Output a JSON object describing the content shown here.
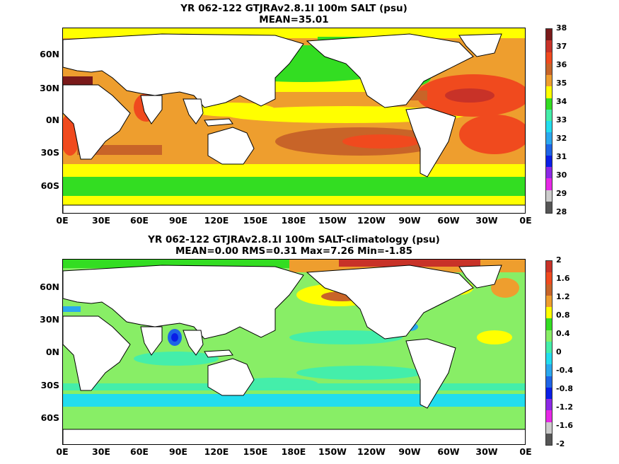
{
  "top": {
    "title": "YR 062-122 GTJRAv2.8.1l 100m SALT (psu)",
    "subtitle": "MEAN=35.01",
    "colorbar": {
      "labels": [
        "38",
        "37",
        "36",
        "35",
        "34",
        "33",
        "32",
        "31",
        "30",
        "29",
        "28"
      ],
      "colors": [
        "#7a1a1a",
        "#c83228",
        "#f04a1e",
        "#c86428",
        "#ee9e2e",
        "#ffff00",
        "#33dd22",
        "#44eeaa",
        "#22ddee",
        "#2aa8ee",
        "#1e64e6",
        "#0a1ee6",
        "#8c28e6",
        "#e628e6",
        "#cccccc",
        "#555555"
      ]
    }
  },
  "bottom": {
    "title": "YR 062-122 GTJRAv2.8.1l 100m SALT-climatology (psu)",
    "subtitle": "MEAN=0.00   RMS=0.31   Max=7.26   Min=-1.85",
    "colorbar": {
      "labels": [
        "2",
        "1.6",
        "1.2",
        "0.8",
        "0.4",
        "0",
        "-0.4",
        "-0.8",
        "-1.2",
        "-1.6",
        "-2"
      ],
      "colors": [
        "#c83228",
        "#f04a1e",
        "#c86428",
        "#ee9e2e",
        "#ffff00",
        "#33dd22",
        "#88ee66",
        "#44eeaa",
        "#22ddee",
        "#2aa8ee",
        "#1e64e6",
        "#0a1ee6",
        "#8c28e6",
        "#e628e6",
        "#cccccc",
        "#555555"
      ]
    }
  },
  "lat_labels": [
    "60N",
    "30N",
    "0N",
    "30S",
    "60S"
  ],
  "lon_labels": [
    "0E",
    "30E",
    "60E",
    "90E",
    "120E",
    "150E",
    "180E",
    "150W",
    "120W",
    "90W",
    "60W",
    "30W",
    "0E"
  ]
}
